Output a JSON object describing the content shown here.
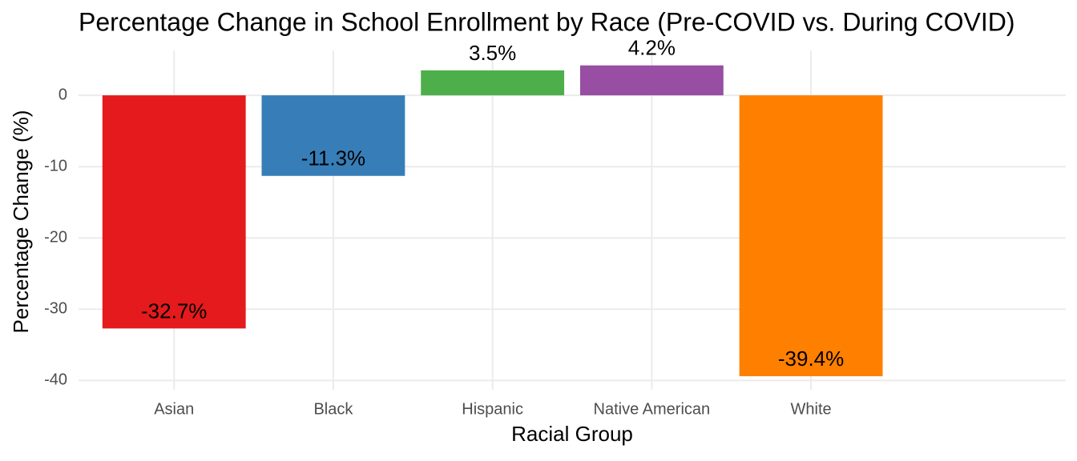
{
  "chart_data": {
    "type": "bar",
    "title": "Percentage Change in School Enrollment by Race (Pre-COVID vs. During COVID)",
    "x_label": "Racial Group",
    "y_label": "Percentage Change (%)",
    "categories": [
      "Asian",
      "Black",
      "Hispanic",
      "Native American",
      "White"
    ],
    "values": [
      -32.7,
      -11.3,
      3.5,
      4.2,
      -39.4
    ],
    "value_labels": [
      "-32.7%",
      "-11.3%",
      "3.5%",
      "4.2%",
      "-39.4%"
    ],
    "colors": [
      "#e41a1c",
      "#377eb8",
      "#4daf4a",
      "#984ea3",
      "#ff7f00"
    ],
    "ylim": [
      -41.3,
      6.3
    ],
    "yticks": [
      -40,
      -30,
      -20,
      -10,
      0
    ],
    "grid": true
  }
}
